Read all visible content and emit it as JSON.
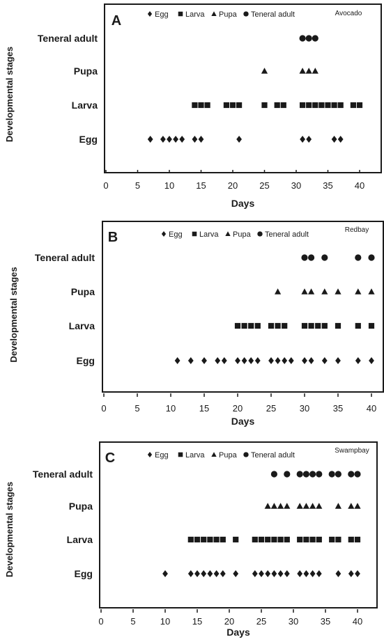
{
  "chart_data": [
    {
      "type": "scatter",
      "panel_letter": "A",
      "host_label": "Avocado",
      "xlabel": "Days",
      "ylabel": "Developmental stages",
      "xlim": [
        0,
        42
      ],
      "xticks": [
        0,
        5,
        10,
        15,
        20,
        25,
        30,
        35,
        40
      ],
      "categories": [
        "Egg",
        "Larva",
        "Pupa",
        "Teneral adult"
      ],
      "legend_position": "top",
      "series": [
        {
          "name": "Egg",
          "marker": "diamond",
          "x": [
            7,
            9,
            10,
            11,
            12,
            14,
            15,
            21,
            31,
            32,
            36,
            37
          ]
        },
        {
          "name": "Larva",
          "marker": "square",
          "x": [
            14,
            15,
            16,
            19,
            20,
            21,
            25,
            27,
            28,
            31,
            32,
            33,
            34,
            35,
            36,
            37,
            39,
            40
          ]
        },
        {
          "name": "Pupa",
          "marker": "triangle",
          "x": [
            25,
            31,
            32,
            33
          ]
        },
        {
          "name": "Teneral adult",
          "marker": "circle",
          "x": [
            31,
            32,
            33
          ]
        }
      ]
    },
    {
      "type": "scatter",
      "panel_letter": "B",
      "host_label": "Redbay",
      "xlabel": "Days",
      "ylabel": "Developmental stages",
      "xlim": [
        0,
        41
      ],
      "xticks": [
        0,
        5,
        10,
        15,
        20,
        25,
        30,
        35,
        40
      ],
      "categories": [
        "Egg",
        "Larva",
        "Pupa",
        "Teneral adult"
      ],
      "legend_position": "top",
      "series": [
        {
          "name": "Egg",
          "marker": "diamond",
          "x": [
            11,
            13,
            15,
            17,
            18,
            20,
            21,
            22,
            23,
            25,
            26,
            27,
            28,
            30,
            31,
            33,
            35,
            38,
            40
          ]
        },
        {
          "name": "Larva",
          "marker": "square",
          "x": [
            20,
            21,
            22,
            23,
            25,
            26,
            27,
            30,
            31,
            32,
            33,
            35,
            38,
            40
          ]
        },
        {
          "name": "Pupa",
          "marker": "triangle",
          "x": [
            26,
            30,
            31,
            33,
            35,
            38,
            40
          ]
        },
        {
          "name": "Teneral adult",
          "marker": "circle",
          "x": [
            30,
            31,
            33,
            38,
            40
          ]
        }
      ]
    },
    {
      "type": "scatter",
      "panel_letter": "C",
      "host_label": "Swampbay",
      "xlabel": "Days",
      "ylabel": "Developmental stages",
      "xlim": [
        0,
        42
      ],
      "xticks": [
        0,
        5,
        10,
        15,
        20,
        25,
        30,
        35,
        40
      ],
      "categories": [
        "Egg",
        "Larva",
        "Pupa",
        "Teneral adult"
      ],
      "legend_position": "top",
      "series": [
        {
          "name": "Egg",
          "marker": "diamond",
          "x": [
            10,
            14,
            15,
            16,
            17,
            18,
            19,
            21,
            24,
            25,
            26,
            27,
            28,
            29,
            31,
            32,
            33,
            34,
            37,
            39,
            40
          ]
        },
        {
          "name": "Larva",
          "marker": "square",
          "x": [
            14,
            15,
            16,
            17,
            18,
            19,
            21,
            24,
            25,
            26,
            27,
            28,
            29,
            31,
            32,
            33,
            34,
            36,
            37,
            39,
            40
          ]
        },
        {
          "name": "Pupa",
          "marker": "triangle",
          "x": [
            26,
            27,
            28,
            29,
            31,
            32,
            33,
            34,
            37,
            39,
            40
          ]
        },
        {
          "name": "Teneral adult",
          "marker": "circle",
          "x": [
            27,
            29,
            31,
            32,
            33,
            34,
            36,
            37,
            39,
            40
          ]
        }
      ]
    }
  ]
}
